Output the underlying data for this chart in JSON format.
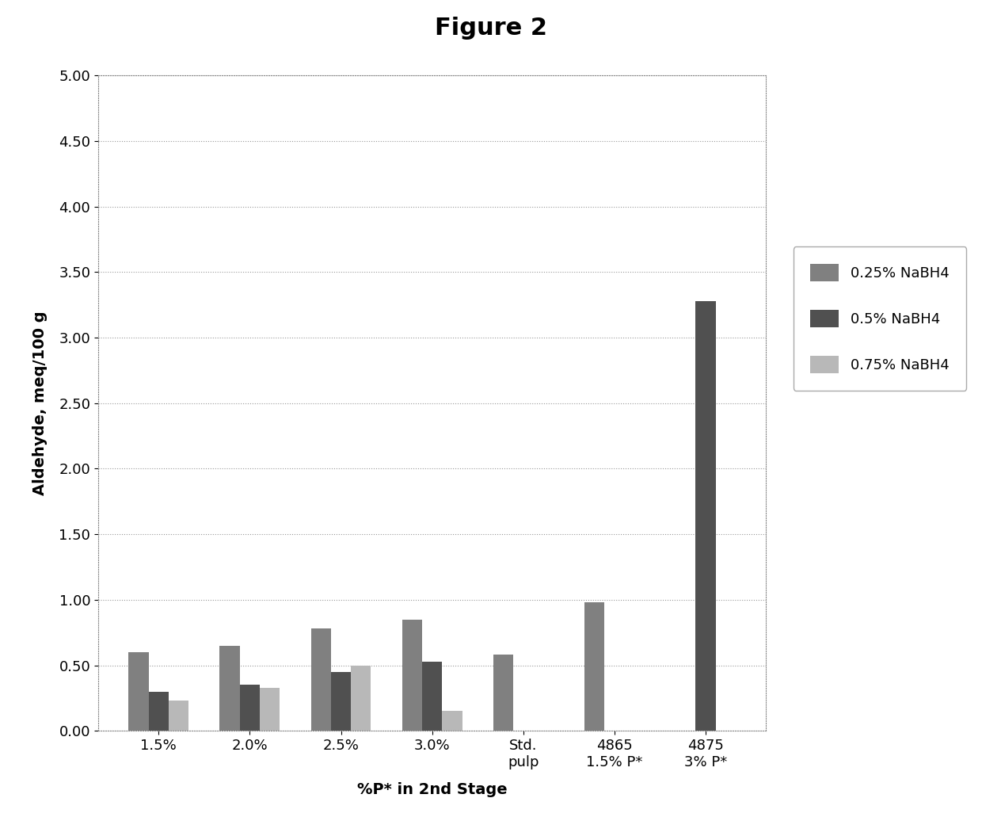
{
  "title": "Figure 2",
  "xlabel": "%P* in 2nd Stage",
  "ylabel": "Aldehyde, meq/100 g",
  "categories": [
    "1.5%",
    "2.0%",
    "2.5%",
    "3.0%",
    "Std.\npulp",
    "4865\n1.5% P*",
    "4875\n3% P*"
  ],
  "series": [
    {
      "label": "0.25% NaBH4",
      "color": "#808080",
      "values": [
        0.6,
        0.65,
        0.78,
        0.85,
        0.58,
        0.98,
        0.0
      ]
    },
    {
      "label": "0.5% NaBH4",
      "color": "#505050",
      "values": [
        0.3,
        0.35,
        0.45,
        0.53,
        0.0,
        0.0,
        3.28
      ]
    },
    {
      "label": "0.75% NaBH4",
      "color": "#b8b8b8",
      "values": [
        0.23,
        0.33,
        0.5,
        0.15,
        0.0,
        0.0,
        0.0
      ]
    }
  ],
  "ylim": [
    0.0,
    5.0
  ],
  "yticks": [
    0.0,
    0.5,
    1.0,
    1.5,
    2.0,
    2.5,
    3.0,
    3.5,
    4.0,
    4.5,
    5.0
  ],
  "figure_bg": "#ffffff",
  "plot_bg": "#ffffff",
  "grid_color": "#999999",
  "border_color": "#888888",
  "bar_width": 0.22,
  "title_fontsize": 22,
  "axis_label_fontsize": 14,
  "tick_fontsize": 13,
  "legend_fontsize": 13
}
